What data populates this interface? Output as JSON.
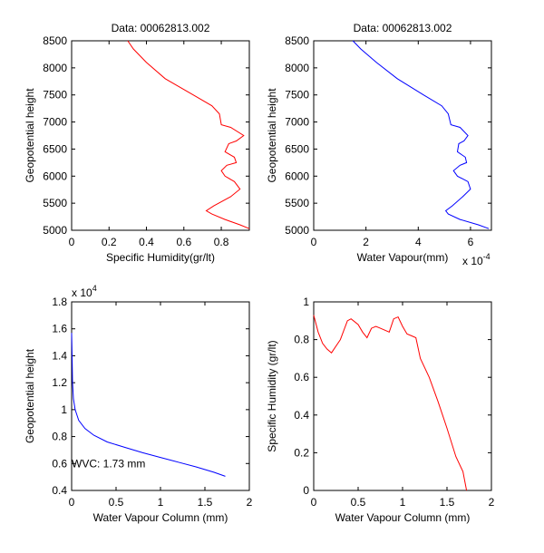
{
  "chart_data": [
    {
      "type": "line",
      "title": "Data: 00062813.002",
      "xlabel": "Specific Humidity(gr/lt)",
      "ylabel": "Geopotential height",
      "xlim": [
        0,
        0.95
      ],
      "ylim": [
        5000,
        8500
      ],
      "xticks": [
        0,
        0.2,
        0.4,
        0.6,
        0.8
      ],
      "xtick_labels": [
        "0",
        "0.2",
        "0.4",
        "0.6",
        "0.8"
      ],
      "yticks": [
        5000,
        5500,
        6000,
        6500,
        7000,
        7500,
        8000,
        8500
      ],
      "ytick_labels": [
        "5000",
        "5500",
        "6000",
        "6500",
        "7000",
        "7500",
        "8000",
        "8500"
      ],
      "xexponent": "",
      "yexponent": "",
      "annotation": "",
      "series": [
        {
          "name": "specific-humidity",
          "color": "#ff0000",
          "x": [
            0.95,
            0.9,
            0.82,
            0.75,
            0.72,
            0.76,
            0.85,
            0.9,
            0.87,
            0.82,
            0.8,
            0.83,
            0.88,
            0.87,
            0.82,
            0.84,
            0.88,
            0.92,
            0.85,
            0.8,
            0.79,
            0.75,
            0.65,
            0.5,
            0.4,
            0.33,
            0.3
          ],
          "y": [
            5030,
            5100,
            5200,
            5300,
            5360,
            5450,
            5620,
            5760,
            5900,
            6000,
            6100,
            6200,
            6250,
            6350,
            6450,
            6600,
            6650,
            6750,
            6900,
            6950,
            7150,
            7300,
            7500,
            7800,
            8100,
            8350,
            8500
          ]
        }
      ]
    },
    {
      "type": "line",
      "title": "Data: 00062813.002",
      "xlabel": "Water Vapour(mm)",
      "ylabel": "Geopotential height",
      "xlim": [
        0,
        6.8
      ],
      "ylim": [
        5000,
        8500
      ],
      "xticks": [
        0,
        2,
        4,
        6
      ],
      "xtick_labels": [
        "0",
        "2",
        "4",
        "6"
      ],
      "yticks": [
        5000,
        5500,
        6000,
        6500,
        7000,
        7500,
        8000,
        8500
      ],
      "ytick_labels": [
        "5000",
        "5500",
        "6000",
        "6500",
        "7000",
        "7500",
        "8000",
        "8500"
      ],
      "xexponent": "x 10",
      "xexponent_power": "-4",
      "yexponent": "",
      "annotation": "",
      "series": [
        {
          "name": "water-vapour",
          "color": "#0000ff",
          "x": [
            6.7,
            6.3,
            5.6,
            5.15,
            5.05,
            5.3,
            5.7,
            6.0,
            5.9,
            5.5,
            5.35,
            5.6,
            5.85,
            5.8,
            5.5,
            5.55,
            5.75,
            5.9,
            5.6,
            5.25,
            5.15,
            4.9,
            4.2,
            3.2,
            2.4,
            1.8,
            1.5
          ],
          "y": [
            5030,
            5100,
            5200,
            5300,
            5360,
            5450,
            5620,
            5760,
            5900,
            6000,
            6100,
            6200,
            6250,
            6350,
            6450,
            6600,
            6650,
            6750,
            6900,
            6950,
            7150,
            7300,
            7500,
            7800,
            8100,
            8350,
            8500
          ]
        }
      ]
    },
    {
      "type": "line",
      "title": "",
      "xlabel": "Water Vapour Column (mm)",
      "ylabel": "Geopotential height",
      "xlim": [
        0,
        2
      ],
      "ylim": [
        0.4,
        1.8
      ],
      "xticks": [
        0,
        0.5,
        1,
        1.5,
        2
      ],
      "xtick_labels": [
        "0",
        "0.5",
        "1",
        "1.5",
        "2"
      ],
      "yticks": [
        0.4,
        0.6,
        0.8,
        1,
        1.2,
        1.4,
        1.6,
        1.8
      ],
      "ytick_labels": [
        "0.4",
        "0.6",
        "0.8",
        "1",
        "1.2",
        "1.4",
        "1.6",
        "1.8"
      ],
      "xexponent": "",
      "yexponent": "x 10",
      "yexponent_power": "4",
      "annotation": "WVC: 1.73 mm",
      "annotation_color": "#ff0000",
      "annotation_x": 0.0,
      "annotation_y": 0.6,
      "series": [
        {
          "name": "water-vapour-column",
          "color": "#0000ff",
          "x": [
            0,
            0.005,
            0.01,
            0.02,
            0.04,
            0.08,
            0.15,
            0.25,
            0.4,
            0.6,
            0.8,
            1.0,
            1.2,
            1.4,
            1.6,
            1.73
          ],
          "y": [
            1.57,
            1.4,
            1.2,
            1.08,
            1.0,
            0.92,
            0.86,
            0.81,
            0.76,
            0.72,
            0.68,
            0.645,
            0.61,
            0.575,
            0.535,
            0.505
          ]
        }
      ]
    },
    {
      "type": "line",
      "title": "",
      "xlabel": "Water Vapour Column (mm)",
      "ylabel": "Specific Humidity (gr/lt)",
      "xlim": [
        0,
        2
      ],
      "ylim": [
        0,
        1
      ],
      "xticks": [
        0,
        0.5,
        1,
        1.5,
        2
      ],
      "xtick_labels": [
        "0",
        "0.5",
        "1",
        "1.5",
        "2"
      ],
      "yticks": [
        0,
        0.2,
        0.4,
        0.6,
        0.8,
        1
      ],
      "ytick_labels": [
        "0",
        "0.2",
        "0.4",
        "0.6",
        "0.8",
        "1"
      ],
      "xexponent": "",
      "yexponent": "",
      "annotation": "",
      "series": [
        {
          "name": "humidity-vs-column",
          "color": "#ff0000",
          "x": [
            0,
            0.05,
            0.1,
            0.15,
            0.2,
            0.3,
            0.38,
            0.42,
            0.5,
            0.55,
            0.6,
            0.65,
            0.7,
            0.75,
            0.8,
            0.85,
            0.9,
            0.95,
            1.0,
            1.05,
            1.1,
            1.15,
            1.2,
            1.3,
            1.4,
            1.5,
            1.6,
            1.68,
            1.7,
            1.72
          ],
          "y": [
            0.93,
            0.84,
            0.78,
            0.75,
            0.73,
            0.8,
            0.9,
            0.91,
            0.88,
            0.84,
            0.81,
            0.86,
            0.87,
            0.86,
            0.85,
            0.84,
            0.91,
            0.92,
            0.87,
            0.83,
            0.82,
            0.81,
            0.7,
            0.6,
            0.47,
            0.33,
            0.18,
            0.1,
            0.05,
            0.0
          ]
        }
      ]
    }
  ]
}
